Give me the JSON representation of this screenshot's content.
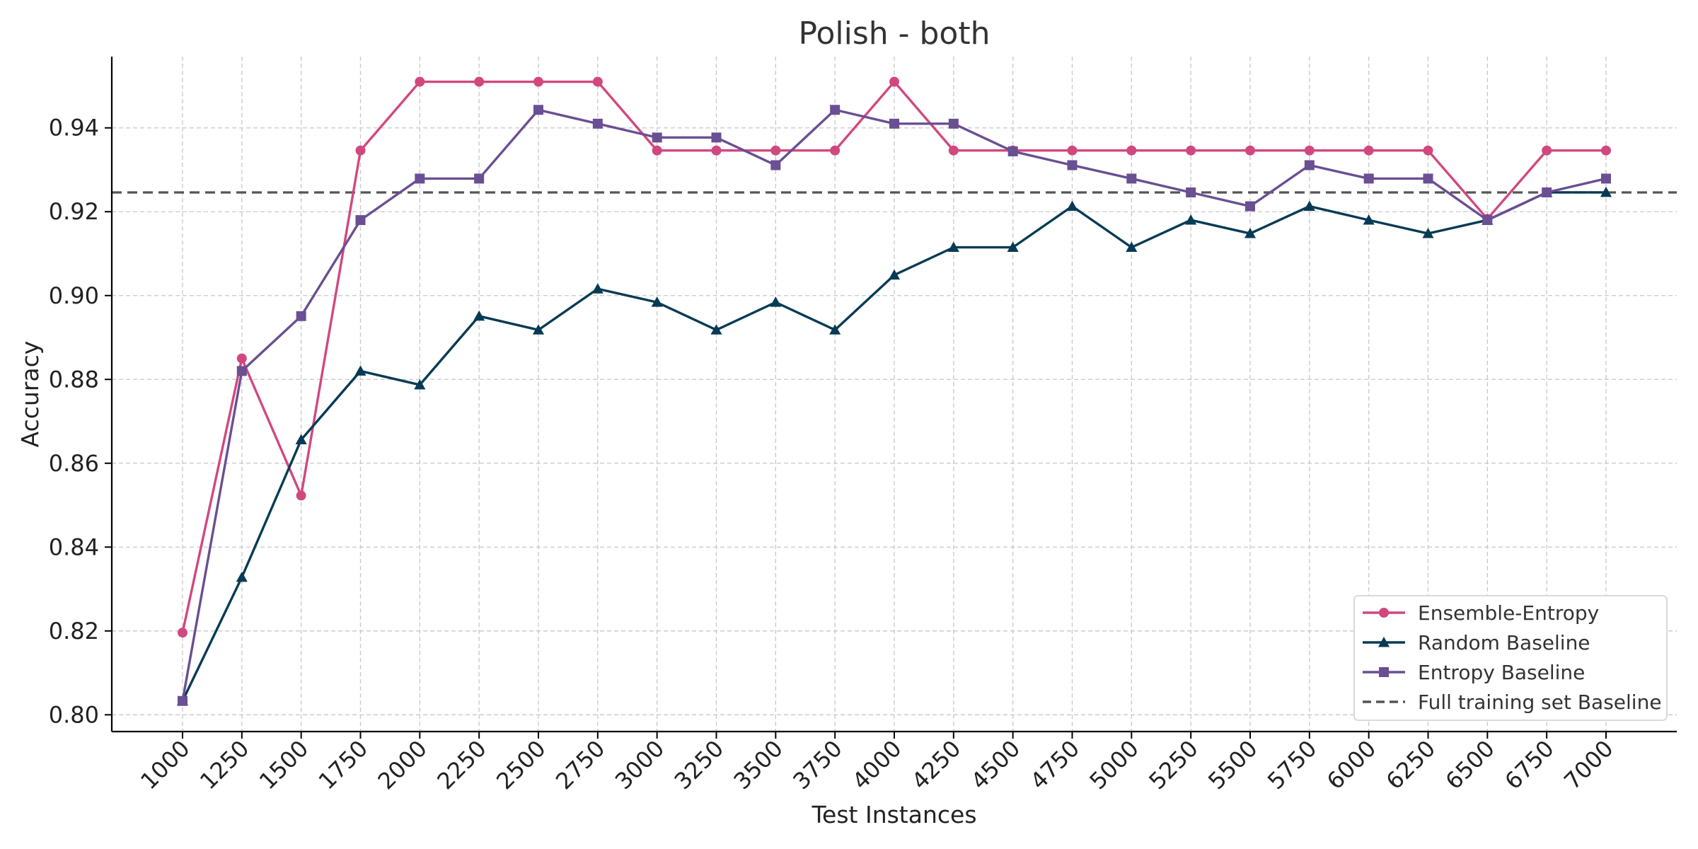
{
  "chart_data": {
    "type": "line",
    "title": "Polish - both",
    "xlabel": "Test Instances",
    "ylabel": "Accuracy",
    "x": [
      1000,
      1250,
      1500,
      1750,
      2000,
      2250,
      2500,
      2750,
      3000,
      3250,
      3500,
      3750,
      4000,
      4250,
      4500,
      4750,
      5000,
      5250,
      5500,
      5750,
      6000,
      6250,
      6500,
      6750,
      7000
    ],
    "xtick_labels": [
      "1000",
      "1250",
      "1500",
      "1750",
      "2000",
      "2250",
      "2500",
      "2750",
      "3000",
      "3250",
      "3500",
      "3750",
      "4000",
      "4250",
      "4500",
      "4750",
      "5000",
      "5250",
      "5500",
      "5750",
      "6000",
      "6250",
      "6500",
      "6750",
      "7000"
    ],
    "ylim": [
      0.796,
      0.957
    ],
    "yticks": [
      0.8,
      0.82,
      0.84,
      0.86,
      0.88,
      0.9,
      0.92,
      0.94
    ],
    "ytick_labels": [
      "0.80",
      "0.82",
      "0.84",
      "0.86",
      "0.88",
      "0.90",
      "0.92",
      "0.94"
    ],
    "grid": true,
    "legend_position": "bottom-right",
    "series": [
      {
        "name": "Ensemble-Entropy",
        "color": "#d1487f",
        "marker": "circle",
        "values": [
          0.8196,
          0.885,
          0.8523,
          0.9346,
          0.951,
          0.951,
          0.951,
          0.951,
          0.9346,
          0.9346,
          0.9346,
          0.9346,
          0.951,
          0.9346,
          0.9346,
          0.9346,
          0.9346,
          0.9346,
          0.9346,
          0.9346,
          0.9346,
          0.9346,
          0.9183,
          0.9346,
          0.9346
        ]
      },
      {
        "name": "Random Baseline",
        "color": "#073b55",
        "marker": "triangle",
        "values": [
          0.8033,
          0.8328,
          0.8656,
          0.882,
          0.8787,
          0.8951,
          0.8918,
          0.9016,
          0.8984,
          0.8918,
          0.8984,
          0.8918,
          0.9049,
          0.9115,
          0.9115,
          0.9213,
          0.9115,
          0.918,
          0.9148,
          0.9213,
          0.918,
          0.9148,
          0.918,
          0.9246,
          0.9246
        ]
      },
      {
        "name": "Entropy Baseline",
        "color": "#6a4f93",
        "marker": "square",
        "values": [
          0.8033,
          0.882,
          0.8951,
          0.918,
          0.9279,
          0.9279,
          0.9443,
          0.941,
          0.9377,
          0.9377,
          0.9311,
          0.9443,
          0.941,
          0.941,
          0.9344,
          0.9311,
          0.9279,
          0.9246,
          0.9213,
          0.9311,
          0.9279,
          0.9279,
          0.918,
          0.9246,
          0.9279
        ]
      }
    ],
    "baseline": {
      "name": "Full training set Baseline",
      "color": "#555555",
      "style": "dashed",
      "value": 0.9246
    }
  }
}
